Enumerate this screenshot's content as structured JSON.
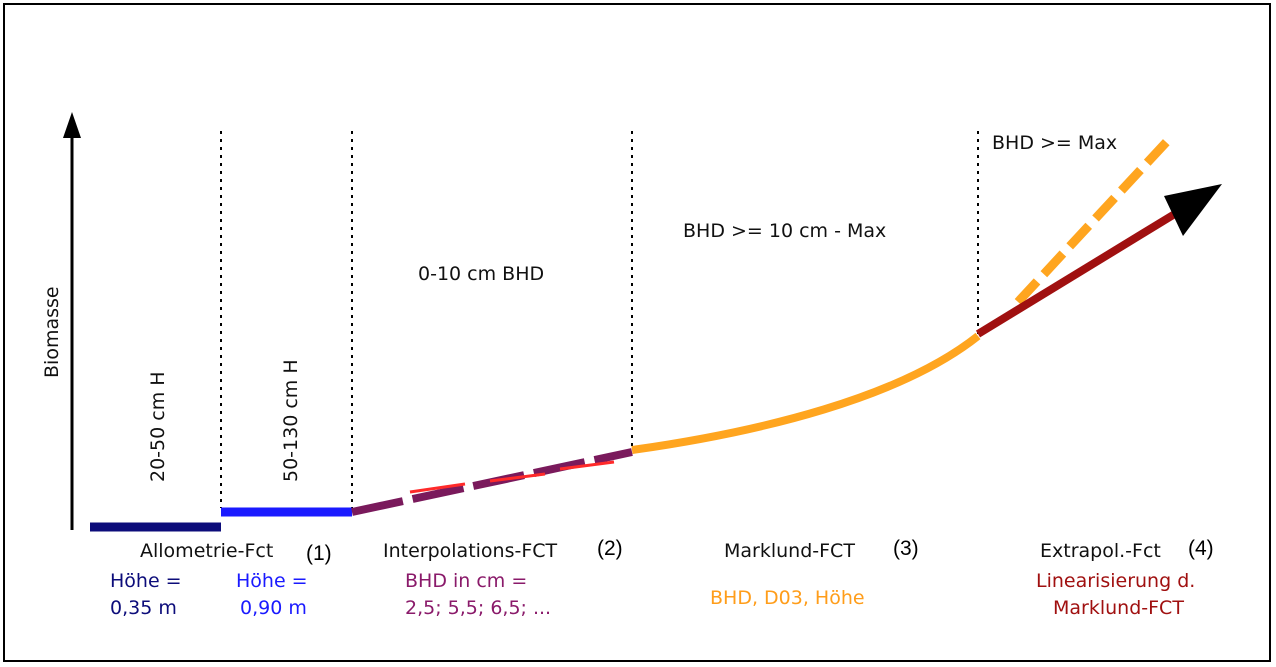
{
  "y_axis_label": "Biomasse",
  "regions": [
    {
      "label": "20-50 cm H"
    },
    {
      "label": "50-130 cm H"
    },
    {
      "label": "0-10 cm BHD"
    },
    {
      "label": "BHD >= 10 cm - Max"
    },
    {
      "label": "BHD >= Max"
    }
  ],
  "functions": [
    {
      "name": "Allometrie-Fct",
      "number": "(1)"
    },
    {
      "name": "Interpolations-FCT",
      "number": "(2)"
    },
    {
      "name": "Marklund-FCT",
      "number": "(3)"
    },
    {
      "name": "Extrapol.-Fct",
      "number": "(4)"
    }
  ],
  "notes": {
    "hoehe1_line1": "Höhe =",
    "hoehe1_line2": "0,35 m",
    "hoehe2_line1": "Höhe =",
    "hoehe2_line2": "0,90 m",
    "bhd_line1": "BHD in cm =",
    "bhd_line2": "2,5; 5,5; 6,5; ...",
    "marklund_vars": "BHD, D03, Höhe",
    "linear_line1": "Linearisierung d.",
    "linear_line2": "Marklund-FCT"
  },
  "colors": {
    "navy": "#0c0c7a",
    "blue": "#1a1aff",
    "purple": "#7a1a5c",
    "red": "#ff2a2a",
    "orange": "#ffa51f",
    "darkred": "#a01010",
    "bhd_text": "#8a1a6a",
    "marklund_text": "#ff9d1a",
    "linear_text": "#a01010"
  }
}
